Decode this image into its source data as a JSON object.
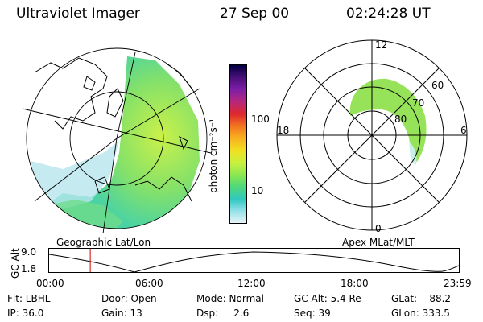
{
  "header": {
    "title": "Ultraviolet Imager",
    "date": "27 Sep 00",
    "time": "02:24:28 UT"
  },
  "left_panel": {
    "caption": "Geographic Lat/Lon"
  },
  "right_panel": {
    "caption": "Apex MLat/MLT",
    "mlt_labels": {
      "top": "12",
      "right": "6",
      "bottom": "0",
      "left": "18"
    },
    "lat_labels": [
      "60",
      "70",
      "80"
    ]
  },
  "colorbar": {
    "unit_label": "photon cm⁻²s⁻¹",
    "ticks": [
      "100",
      "10"
    ],
    "colors": [
      "#000040",
      "#4b0f7a",
      "#7a1ea8",
      "#b4287e",
      "#e0282e",
      "#f07020",
      "#f8b020",
      "#f0e020",
      "#c8f040",
      "#90e850",
      "#50d878",
      "#30c8c0",
      "#90e0e8",
      "#e8f4f8"
    ]
  },
  "timeline": {
    "ylabel": "GC Alt",
    "yticks": [
      "9.0",
      "1.8"
    ],
    "xticks": [
      "00:00",
      "06:00",
      "12:00",
      "18:00",
      "23:59"
    ],
    "marker_time_hours": 2.41,
    "marker_color": "#cc0000"
  },
  "info": {
    "flt": "Flt: LBHL",
    "ip": "IP: 36.0",
    "door": "Door: Open",
    "gain": "Gain: 13",
    "mode": "Mode: Normal",
    "dsp": "Dsp:     2.6",
    "gcalt": "GC Alt: 5.4 Re",
    "seq": "Seq: 39",
    "glat": "GLat:    88.2",
    "glon": "GLon: 333.5"
  }
}
